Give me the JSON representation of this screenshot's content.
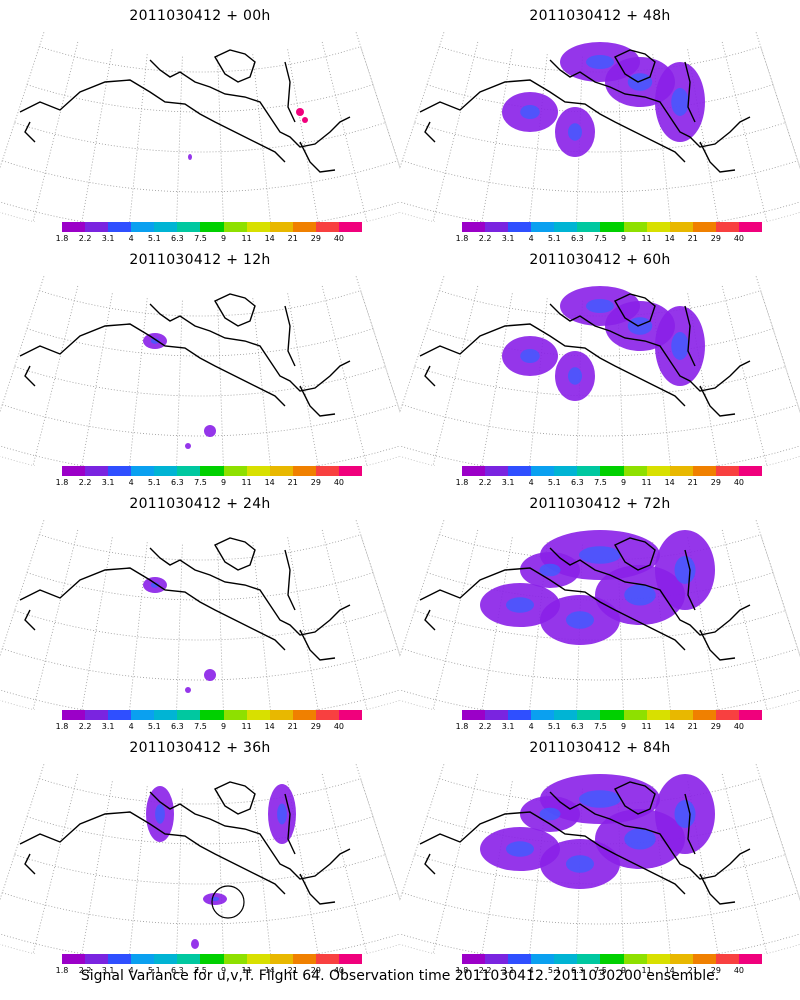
{
  "panels": [
    {
      "title": "2011030412 + 00h",
      "signal": "minimal"
    },
    {
      "title": "2011030412 + 48h",
      "signal": "moderate"
    },
    {
      "title": "2011030412 + 12h",
      "signal": "small"
    },
    {
      "title": "2011030412 + 60h",
      "signal": "moderate"
    },
    {
      "title": "2011030412 + 24h",
      "signal": "small"
    },
    {
      "title": "2011030412 + 72h",
      "signal": "broad"
    },
    {
      "title": "2011030412 + 36h",
      "signal": "growing"
    },
    {
      "title": "2011030412 + 84h",
      "signal": "broad"
    }
  ],
  "colorbar": {
    "labels": [
      "1.8",
      "2.2",
      "3.1",
      "4",
      "5.1",
      "6.3",
      "7.5",
      "9",
      "11",
      "14",
      "21",
      "29",
      "40"
    ],
    "colors": [
      "#9b00c8",
      "#7a24e0",
      "#2f4fff",
      "#0aa0f0",
      "#00b4d4",
      "#00c8a0",
      "#00d000",
      "#8ee000",
      "#d8e000",
      "#e8b800",
      "#f08000",
      "#f84040",
      "#f0007c"
    ]
  },
  "caption": "Signal Variance for u,v,T. Flight 64. Observation time 2011030412. 2011030200 ensemble."
}
